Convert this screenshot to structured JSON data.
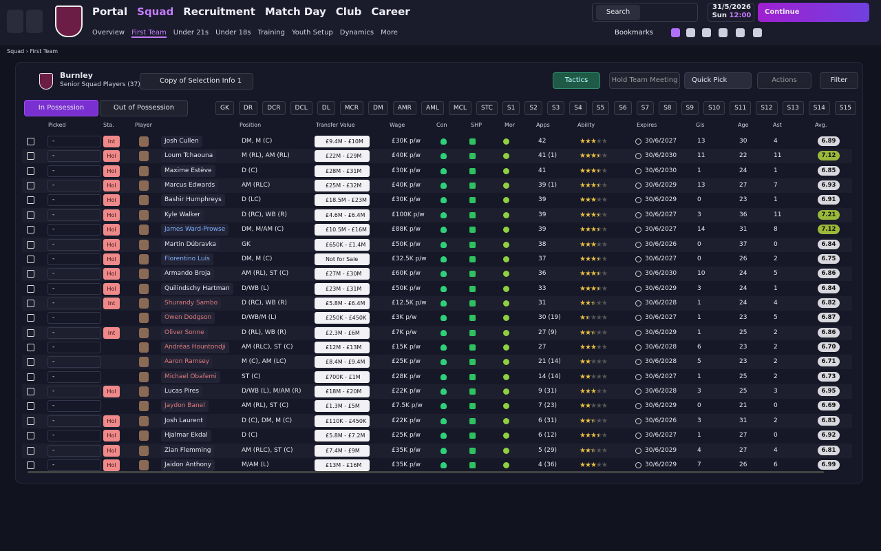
{
  "nav": {
    "items": [
      "Portal",
      "Squad",
      "Recruitment",
      "Match Day",
      "Club",
      "Career"
    ],
    "subitems": [
      "Overview",
      "First Team",
      "Under 21s",
      "Under 18s",
      "Training",
      "Youth Setup",
      "Dynamics",
      "More"
    ]
  },
  "search": "Search",
  "date": "31/5/2026",
  "day": "Sun",
  "time": "12:00",
  "continue": "Continue",
  "bookmarks": "Bookmarks",
  "breadcrumb": [
    "Squad",
    "First Team"
  ],
  "club": "Burnley",
  "squad_label": "Senior Squad Players (37)",
  "view": "Copy of Selection Info 1",
  "buttons": [
    "Tactics",
    "Hold Team Meeting",
    "Quick Pick",
    "Actions",
    "Filter"
  ],
  "tabs": [
    "In Possession",
    "Out of Possession"
  ],
  "positions": [
    "GK",
    "DR",
    "DCR",
    "DCL",
    "DL",
    "MCR",
    "DM",
    "AMR",
    "AML",
    "MCL",
    "STC",
    "S1",
    "S2",
    "S3",
    "S4",
    "S5",
    "S6",
    "S7",
    "S8",
    "S9",
    "S10",
    "S11",
    "S12",
    "S13",
    "S14",
    "S15"
  ],
  "table": {
    "columns": [
      "Picked",
      "Sta.",
      "Player",
      "Position",
      "Transfer Value",
      "Wage",
      "Con",
      "SHP",
      "Mor",
      "Apps",
      "Ability",
      "Expires",
      "Gls",
      "Age",
      "Ast",
      "Avg."
    ],
    "rows": [
      {
        "picked": "-",
        "status": "Int",
        "player": "Josh Cullen",
        "position": "DM, M (C)",
        "value": "£9.4M - £10M",
        "wage": "£30K p/w",
        "apps": "42",
        "ability": 3,
        "expires": "30/6/2027",
        "goals": 13,
        "age": 30,
        "assists": 4,
        "avg": "6.89"
      },
      {
        "picked": "-",
        "status": "Hol",
        "player": "Loum Tchaouna",
        "position": "M (RL), AM (RL)",
        "value": "£22M - £29M",
        "wage": "£40K p/w",
        "apps": "41 (1)",
        "ability": 3.5,
        "expires": "30/6/2030",
        "goals": 11,
        "age": 22,
        "assists": 11,
        "avg": "7.12"
      },
      {
        "picked": "-",
        "status": "Hol",
        "player": "Maxime Estève",
        "position": "D (C)",
        "value": "£28M - £31M",
        "wage": "£30K p/w",
        "apps": "41",
        "ability": 3.5,
        "expires": "30/6/2030",
        "goals": 1,
        "age": 24,
        "assists": 1,
        "avg": "6.85"
      },
      {
        "picked": "-",
        "status": "Hol",
        "player": "Marcus Edwards",
        "position": "AM (RLC)",
        "value": "£25M - £32M",
        "wage": "£40K p/w",
        "apps": "39 (1)",
        "ability": 3.5,
        "expires": "30/6/2029",
        "goals": 13,
        "age": 27,
        "assists": 7,
        "avg": "6.93"
      },
      {
        "picked": "-",
        "status": "Hol",
        "player": "Bashir Humphreys",
        "position": "D (LC)",
        "value": "£18.5M - £23M",
        "wage": "£30K p/w",
        "apps": "39",
        "ability": 3,
        "expires": "30/6/2029",
        "goals": 0,
        "age": 23,
        "assists": 1,
        "avg": "6.91"
      },
      {
        "picked": "-",
        "status": "Hol",
        "player": "Kyle Walker",
        "position": "D (RC), WB (R)",
        "value": "£4.6M - £6.4M",
        "wage": "£100K p/w",
        "apps": "39",
        "ability": 3.5,
        "expires": "30/6/2027",
        "goals": 3,
        "age": 36,
        "assists": 11,
        "avg": "7.21"
      },
      {
        "picked": "-",
        "status": "Hol",
        "player": "James Ward-Prowse",
        "name_color": "#7fb0ff",
        "position": "DM, M/AM (C)",
        "value": "£10.5M - £16M",
        "wage": "£88K p/w",
        "apps": "39",
        "ability": 3.5,
        "expires": "30/6/2027",
        "goals": 14,
        "age": 31,
        "assists": 8,
        "avg": "7.12"
      },
      {
        "picked": "-",
        "status": "Hol",
        "player": "Martin Dúbravka",
        "position": "GK",
        "value": "£650K - £1.4M",
        "wage": "£50K p/w",
        "apps": "38",
        "ability": 3,
        "expires": "30/6/2026",
        "goals": 0,
        "age": 37,
        "assists": 0,
        "avg": "6.84"
      },
      {
        "picked": "-",
        "status": "Hol",
        "player": "Florentino Luís",
        "name_color": "#7fb0ff",
        "position": "DM, M (C)",
        "value": "Not for Sale",
        "wage": "£32.5K p/w",
        "apps": "37",
        "ability": 3.5,
        "expires": "30/6/2027",
        "goals": 0,
        "age": 26,
        "assists": 2,
        "avg": "6.75"
      },
      {
        "picked": "-",
        "status": "Hol",
        "player": "Armando Broja",
        "position": "AM (RL), ST (C)",
        "value": "£27M - £30M",
        "wage": "£60K p/w",
        "apps": "36",
        "ability": 3.5,
        "expires": "30/6/2030",
        "goals": 10,
        "age": 24,
        "assists": 5,
        "avg": "6.86"
      },
      {
        "picked": "-",
        "status": "Hol",
        "player": "Quilindschy Hartman",
        "position": "D/WB (L)",
        "value": "£23M - £31M",
        "wage": "£50K p/w",
        "apps": "33",
        "ability": 3.5,
        "expires": "30/6/2029",
        "goals": 3,
        "age": 24,
        "assists": 1,
        "avg": "6.84"
      },
      {
        "picked": "-",
        "status": "Int",
        "player": "Shurandy Sambo",
        "name_color": "#e07a7a",
        "position": "D (RC), WB (R)",
        "value": "£5.8M - £6.4M",
        "wage": "£12.5K p/w",
        "apps": "31",
        "ability": 2.5,
        "expires": "30/6/2028",
        "goals": 1,
        "age": 24,
        "assists": 4,
        "avg": "6.82"
      },
      {
        "picked": "-",
        "player": "Owen Dodgson",
        "name_color": "#e07a7a",
        "position": "D/WB/M (L)",
        "value": "£250K - £450K",
        "wage": "£3K p/w",
        "apps": "30 (19)",
        "ability": 1.5,
        "expires": "30/6/2027",
        "goals": 1,
        "age": 23,
        "assists": 5,
        "avg": "6.87"
      },
      {
        "picked": "-",
        "status": "Int",
        "player": "Oliver Sonne",
        "name_color": "#e07a7a",
        "position": "D (RL), WB (R)",
        "value": "£2.3M - £6M",
        "wage": "£7K p/w",
        "apps": "27 (9)",
        "ability": 2.5,
        "expires": "30/6/2029",
        "goals": 1,
        "age": 25,
        "assists": 2,
        "avg": "6.86"
      },
      {
        "picked": "-",
        "player": "Andréas Hountondji",
        "name_color": "#e07a7a",
        "position": "AM (RLC), ST (C)",
        "value": "£12M - £13M",
        "wage": "£15K p/w",
        "apps": "27",
        "ability": 3,
        "expires": "30/6/2028",
        "goals": 6,
        "age": 23,
        "assists": 2,
        "avg": "6.70"
      },
      {
        "picked": "-",
        "player": "Aaron Ramsey",
        "name_color": "#e07a7a",
        "position": "M (C), AM (LC)",
        "value": "£8.4M - £9.4M",
        "wage": "£25K p/w",
        "apps": "21 (14)",
        "ability": 2,
        "expires": "30/6/2028",
        "goals": 5,
        "age": 23,
        "assists": 2,
        "avg": "6.71"
      },
      {
        "picked": "-",
        "player": "Michael Obafemi",
        "name_color": "#e07a7a",
        "position": "ST (C)",
        "value": "£700K - £1M",
        "wage": "£28K p/w",
        "apps": "14 (14)",
        "ability": 2,
        "expires": "30/6/2027",
        "goals": 1,
        "age": 25,
        "assists": 2,
        "avg": "6.73"
      },
      {
        "picked": "-",
        "status": "Hol",
        "player": "Lucas Pires",
        "position": "D/WB (L), M/AM (R)",
        "value": "£18M - £20M",
        "wage": "£22K p/w",
        "apps": "9 (31)",
        "ability": 3,
        "expires": "30/6/2028",
        "goals": 3,
        "age": 25,
        "assists": 3,
        "avg": "6.95"
      },
      {
        "picked": "-",
        "player": "Jaydon Banel",
        "name_color": "#e07a7a",
        "position": "AM (RL), ST (C)",
        "value": "£1.3M - £5M",
        "wage": "£7.5K p/w",
        "apps": "7 (23)",
        "ability": 2,
        "expires": "30/6/2029",
        "goals": 0,
        "age": 21,
        "assists": 0,
        "avg": "6.69"
      },
      {
        "picked": "-",
        "status": "Hol",
        "player": "Josh Laurent",
        "position": "D (C), DM, M (C)",
        "value": "£110K - £450K",
        "wage": "£22K p/w",
        "apps": "6 (31)",
        "ability": 2.5,
        "expires": "30/6/2026",
        "goals": 3,
        "age": 31,
        "assists": 2,
        "avg": "6.83"
      },
      {
        "picked": "-",
        "status": "Hol",
        "player": "Hjalmar Ekdal",
        "position": "D (C)",
        "value": "£5.8M - £7.2M",
        "wage": "£25K p/w",
        "apps": "6 (12)",
        "ability": 3.5,
        "expires": "30/6/2027",
        "goals": 1,
        "age": 27,
        "assists": 0,
        "avg": "6.92"
      },
      {
        "picked": "-",
        "status": "Hol",
        "player": "Zian Flemming",
        "position": "AM (RLC), ST (C)",
        "value": "£7.4M - £9M",
        "wage": "£35K p/w",
        "apps": "5 (29)",
        "ability": 2.5,
        "expires": "30/6/2029",
        "goals": 4,
        "age": 27,
        "assists": 4,
        "avg": "6.81"
      },
      {
        "picked": "-",
        "status": "Hol",
        "player": "Jaidon Anthony",
        "position": "M/AM (L)",
        "value": "£13M - £16M",
        "wage": "£35K p/w",
        "apps": "4 (36)",
        "ability": 3,
        "expires": "30/6/2029",
        "goals": 7,
        "age": 26,
        "assists": 6,
        "avg": "6.99"
      }
    ]
  }
}
